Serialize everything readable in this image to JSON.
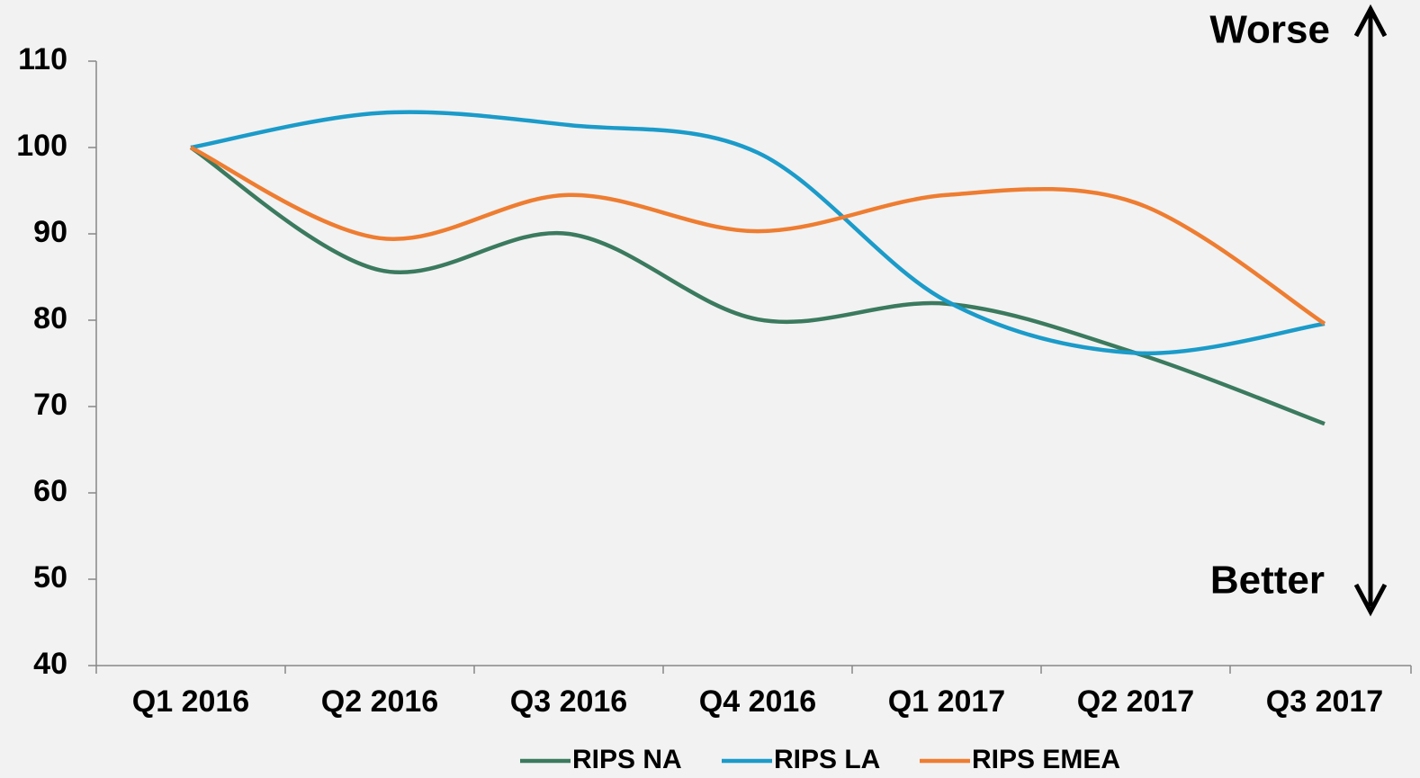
{
  "chart_data": {
    "type": "line",
    "categories": [
      "Q1 2016",
      "Q2 2016",
      "Q3 2016",
      "Q4 2016",
      "Q1 2017",
      "Q2 2017",
      "Q3 2017"
    ],
    "series": [
      {
        "name": "RIPS NA",
        "color": "#3b7a5e",
        "values": [
          100,
          85.8,
          90,
          80.1,
          81.9,
          76.2,
          68
        ]
      },
      {
        "name": "RIPS LA",
        "color": "#1b9bc9",
        "values": [
          100,
          104,
          102.6,
          99.4,
          82.2,
          76.2,
          79.6
        ]
      },
      {
        "name": "RIPS EMEA",
        "color": "#ee7d31",
        "values": [
          100,
          89.5,
          94.5,
          90.3,
          94.5,
          93.6,
          79.6
        ]
      }
    ],
    "ylim": [
      40,
      110
    ],
    "yticks": [
      40,
      50,
      60,
      70,
      80,
      90,
      100,
      110
    ],
    "annotations": [
      "Worse",
      "Better"
    ],
    "smooth": true,
    "legend": "bottom"
  }
}
